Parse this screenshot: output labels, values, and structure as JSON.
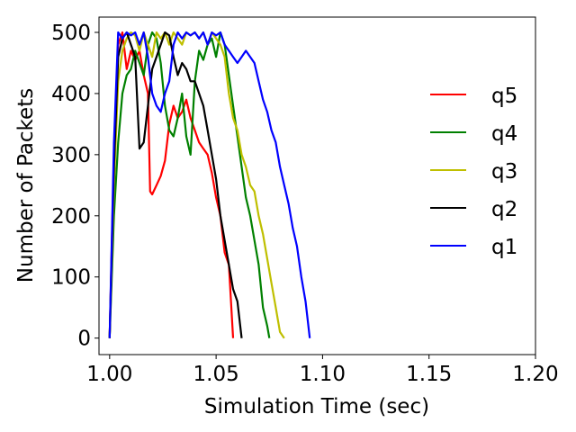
{
  "chart_data": {
    "type": "line",
    "title": "",
    "xlabel": "Simulation Time (sec)",
    "ylabel": "Number of Packets",
    "xlim": [
      0.995,
      1.2
    ],
    "ylim": [
      -27,
      525
    ],
    "xticks": [
      1.0,
      1.05,
      1.1,
      1.15,
      1.2
    ],
    "xtick_labels": [
      "1.00",
      "1.05",
      "1.10",
      "1.15",
      "1.20"
    ],
    "yticks": [
      0,
      100,
      200,
      300,
      400,
      500
    ],
    "ytick_labels": [
      "0",
      "100",
      "200",
      "300",
      "400",
      "500"
    ],
    "grid": false,
    "legend_position": "right",
    "series": [
      {
        "name": "q5",
        "color": "#ff0000",
        "x": [
          1.0,
          1.002,
          1.004,
          1.006,
          1.008,
          1.01,
          1.012,
          1.014,
          1.016,
          1.018,
          1.019,
          1.02,
          1.022,
          1.024,
          1.026,
          1.028,
          1.03,
          1.032,
          1.034,
          1.036,
          1.038,
          1.04,
          1.042,
          1.044,
          1.046,
          1.048,
          1.05,
          1.052,
          1.054,
          1.056,
          1.058
        ],
        "y": [
          0,
          300,
          480,
          500,
          440,
          470,
          455,
          470,
          430,
          400,
          240,
          235,
          250,
          265,
          290,
          350,
          380,
          360,
          370,
          390,
          360,
          340,
          320,
          310,
          300,
          270,
          230,
          200,
          140,
          120,
          0
        ]
      },
      {
        "name": "q4",
        "color": "#008000",
        "x": [
          1.0,
          1.002,
          1.004,
          1.006,
          1.008,
          1.01,
          1.012,
          1.014,
          1.016,
          1.018,
          1.02,
          1.022,
          1.024,
          1.026,
          1.028,
          1.03,
          1.032,
          1.034,
          1.036,
          1.038,
          1.04,
          1.042,
          1.044,
          1.046,
          1.048,
          1.05,
          1.052,
          1.054,
          1.056,
          1.058,
          1.06,
          1.062,
          1.064,
          1.066,
          1.068,
          1.07,
          1.072,
          1.074,
          1.075
        ],
        "y": [
          0,
          200,
          320,
          400,
          430,
          440,
          470,
          450,
          430,
          480,
          500,
          490,
          450,
          380,
          340,
          330,
          360,
          400,
          330,
          300,
          420,
          470,
          455,
          480,
          490,
          460,
          500,
          480,
          430,
          380,
          330,
          280,
          230,
          200,
          160,
          120,
          50,
          20,
          0
        ]
      },
      {
        "name": "q3",
        "color": "#bfbf00",
        "x": [
          1.0,
          1.002,
          1.004,
          1.006,
          1.008,
          1.01,
          1.012,
          1.014,
          1.016,
          1.018,
          1.02,
          1.022,
          1.024,
          1.026,
          1.028,
          1.03,
          1.032,
          1.034,
          1.036,
          1.038,
          1.04,
          1.042,
          1.044,
          1.046,
          1.048,
          1.05,
          1.052,
          1.054,
          1.056,
          1.058,
          1.06,
          1.062,
          1.064,
          1.066,
          1.068,
          1.07,
          1.072,
          1.074,
          1.076,
          1.078,
          1.08,
          1.082
        ],
        "y": [
          0,
          250,
          420,
          470,
          490,
          500,
          495,
          470,
          500,
          480,
          460,
          500,
          490,
          500,
          480,
          500,
          490,
          480,
          500,
          495,
          500,
          490,
          500,
          480,
          500,
          490,
          480,
          460,
          400,
          360,
          340,
          300,
          280,
          250,
          240,
          200,
          170,
          130,
          90,
          50,
          10,
          0
        ]
      },
      {
        "name": "q2",
        "color": "#000000",
        "x": [
          1.0,
          1.002,
          1.004,
          1.006,
          1.008,
          1.01,
          1.012,
          1.014,
          1.016,
          1.018,
          1.02,
          1.022,
          1.024,
          1.026,
          1.028,
          1.03,
          1.032,
          1.034,
          1.036,
          1.038,
          1.04,
          1.042,
          1.044,
          1.046,
          1.048,
          1.05,
          1.052,
          1.054,
          1.056,
          1.058,
          1.06,
          1.062
        ],
        "y": [
          0,
          280,
          460,
          490,
          500,
          480,
          460,
          310,
          320,
          380,
          440,
          460,
          480,
          500,
          495,
          460,
          430,
          450,
          440,
          420,
          420,
          400,
          380,
          340,
          300,
          260,
          200,
          160,
          120,
          80,
          60,
          0
        ]
      },
      {
        "name": "q1",
        "color": "#0000ff",
        "x": [
          1.0,
          1.002,
          1.004,
          1.006,
          1.008,
          1.01,
          1.012,
          1.014,
          1.016,
          1.018,
          1.02,
          1.022,
          1.024,
          1.026,
          1.028,
          1.03,
          1.032,
          1.034,
          1.036,
          1.038,
          1.04,
          1.042,
          1.044,
          1.046,
          1.048,
          1.05,
          1.052,
          1.054,
          1.056,
          1.058,
          1.06,
          1.062,
          1.064,
          1.066,
          1.068,
          1.07,
          1.072,
          1.074,
          1.076,
          1.078,
          1.08,
          1.082,
          1.084,
          1.086,
          1.088,
          1.09,
          1.092,
          1.094
        ],
        "y": [
          0,
          320,
          500,
          490,
          500,
          495,
          500,
          480,
          500,
          460,
          400,
          380,
          370,
          400,
          420,
          480,
          500,
          490,
          500,
          495,
          500,
          490,
          500,
          480,
          500,
          495,
          500,
          480,
          470,
          460,
          450,
          460,
          470,
          460,
          450,
          420,
          390,
          370,
          340,
          320,
          280,
          250,
          220,
          180,
          150,
          100,
          60,
          0
        ]
      }
    ]
  }
}
